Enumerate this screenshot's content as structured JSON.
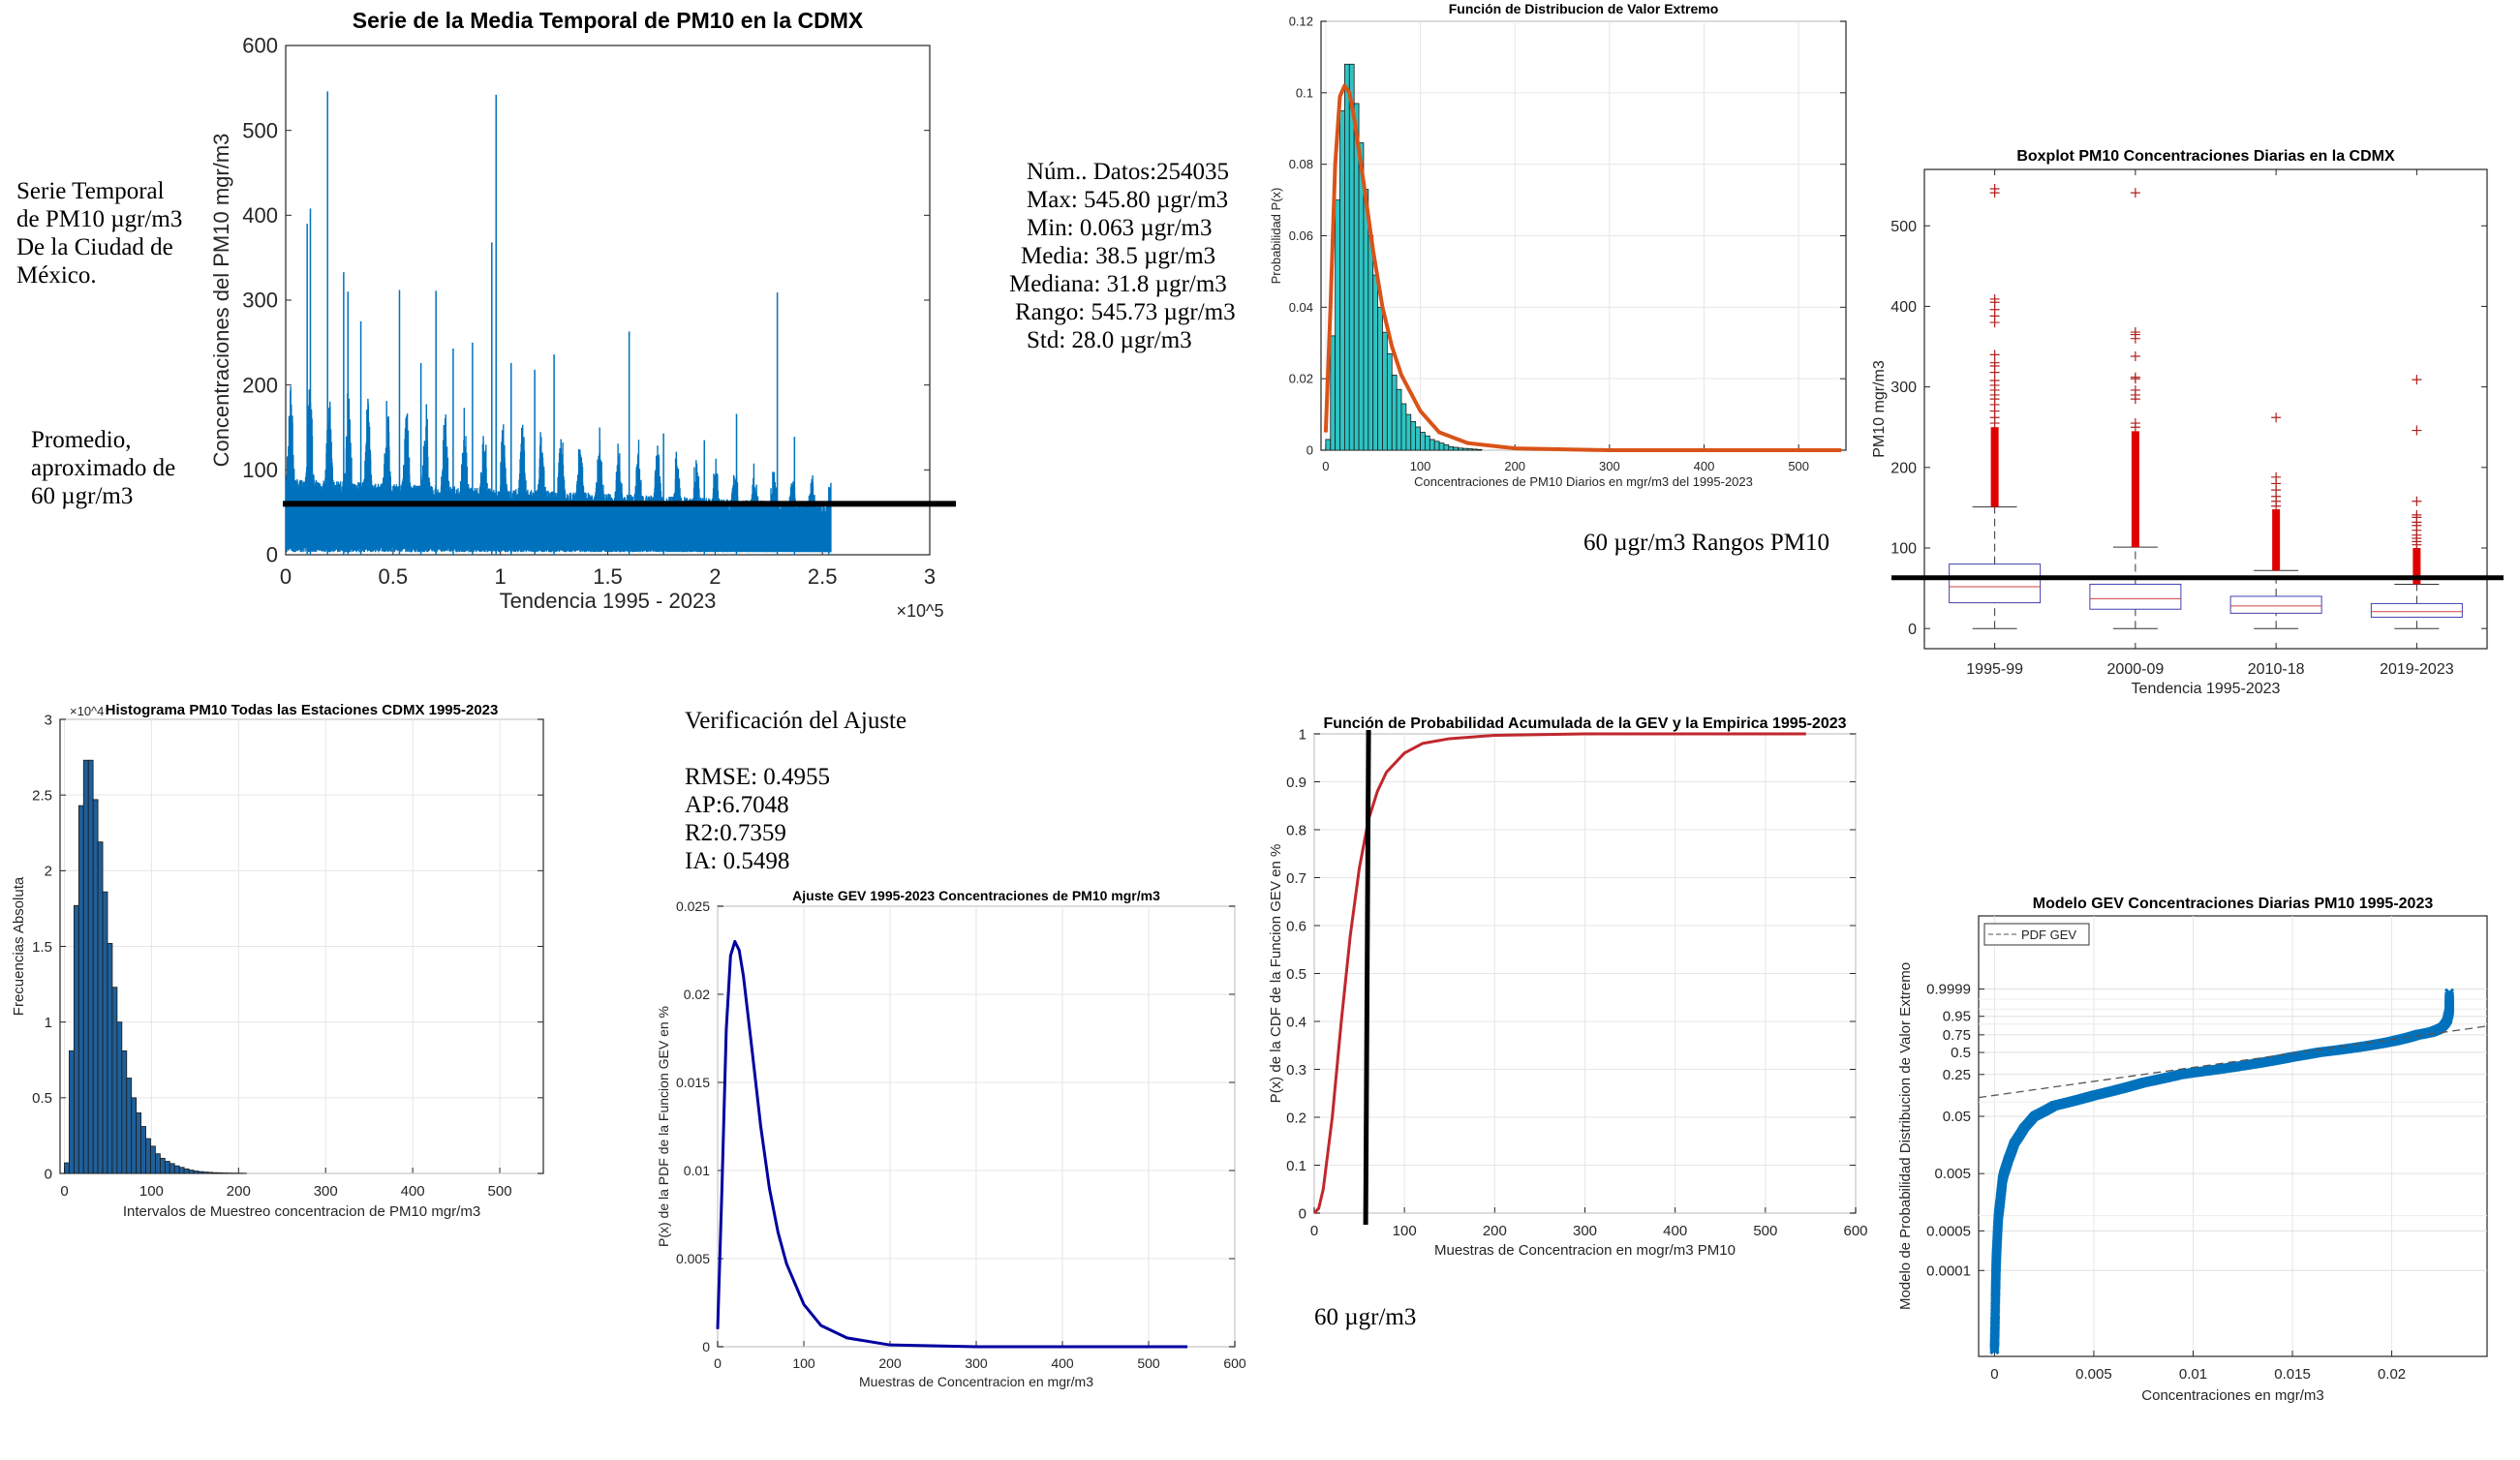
{
  "annotations": {
    "series_note": [
      "Serie Temporal",
      "de PM10 µgr/m3",
      "De la Ciudad de",
      "México."
    ],
    "average_note": [
      "Promedio,",
      "aproximado de",
      "60 µgr/m3"
    ],
    "stats": [
      "Núm.. Datos:254035",
      "Max: 545.80 µgr/m3",
      "Min: 0.063 µgr/m3",
      "Media: 38.5 µgr/m3",
      "Mediana: 31.8 µgr/m3",
      "Rango: 545.73 µgr/m3",
      "Std: 28.0 µgr/m3"
    ],
    "ranges_note": "60 µgr/m3 Rangos PM10",
    "fit_title": "Verificación del Ajuste",
    "fit_stats": [
      "RMSE: 0.4955",
      "AP:6.7048",
      "R2:0.7359",
      "IA: 0.5498"
    ],
    "cdf_note": "60 µgr/m3"
  },
  "chart_data": [
    {
      "type": "line",
      "title": "Serie de la Media Temporal de PM10 en la CDMX",
      "xlabel": "Tendencia 1995 - 2023",
      "ylabel": "Concentraciones del PM10 mgr/m3",
      "x_exponent": "×10^5",
      "xlim": [
        0,
        300000
      ],
      "ylim": [
        0,
        600
      ],
      "xticks": [
        0,
        50000,
        100000,
        150000,
        200000,
        250000,
        300000
      ],
      "xtick_labels": [
        "0",
        "0.5",
        "1",
        "1.5",
        "2",
        "2.5",
        "3"
      ],
      "yticks": [
        0,
        100,
        200,
        300,
        400,
        500,
        600
      ],
      "ytick_labels": [
        "0",
        "100",
        "200",
        "300",
        "400",
        "500",
        "600"
      ],
      "n_points": 254035,
      "peaks": [
        [
          10000,
          390
        ],
        [
          11500,
          408
        ],
        [
          19500,
          546
        ],
        [
          27000,
          333
        ],
        [
          29000,
          310
        ],
        [
          35000,
          275
        ],
        [
          53000,
          312
        ],
        [
          63000,
          226
        ],
        [
          70000,
          311
        ],
        [
          78000,
          243
        ],
        [
          87000,
          250
        ],
        [
          96000,
          368
        ],
        [
          98000,
          542
        ],
        [
          105000,
          226
        ],
        [
          116000,
          218
        ],
        [
          125000,
          236
        ],
        [
          160000,
          263
        ],
        [
          176000,
          143
        ],
        [
          195000,
          135
        ],
        [
          210000,
          166
        ],
        [
          229000,
          309
        ],
        [
          237000,
          139
        ],
        [
          253000,
          80
        ]
      ],
      "grid": false,
      "color": "#0072BD",
      "threshold": 60
    },
    {
      "type": "bar",
      "title": "Función de Distribucion de Valor Extremo",
      "xlabel": "Concentraciones de PM10 Diarios en mgr/m3 del 1995-2023",
      "ylabel": "Probabilidad P(x)",
      "xlim": [
        -5,
        550
      ],
      "ylim": [
        0,
        0.12
      ],
      "xticks": [
        0,
        100,
        200,
        300,
        400,
        500
      ],
      "xtick_labels": [
        "0",
        "100",
        "200",
        "300",
        "400",
        "500"
      ],
      "yticks": [
        0,
        0.02,
        0.04,
        0.06,
        0.08,
        0.1,
        0.12
      ],
      "ytick_labels": [
        "0",
        "0.02",
        "0.04",
        "0.06",
        "0.08",
        "0.1",
        "0.12"
      ],
      "bin_width": 5,
      "values": [
        0.003,
        0.032,
        0.07,
        0.095,
        0.108,
        0.108,
        0.097,
        0.086,
        0.073,
        0.06,
        0.049,
        0.04,
        0.033,
        0.027,
        0.021,
        0.017,
        0.013,
        0.01,
        0.008,
        0.0065,
        0.005,
        0.004,
        0.003,
        0.0025,
        0.002,
        0.0015,
        0.001,
        0.0008,
        0.0006,
        0.0005,
        0.0004,
        0.0003,
        0.0002
      ],
      "fit_x": [
        0,
        5,
        10,
        15,
        20,
        25,
        30,
        40,
        50,
        60,
        70,
        80,
        100,
        120,
        150,
        200,
        300,
        400,
        545
      ],
      "fit_y": [
        0.005,
        0.04,
        0.08,
        0.099,
        0.102,
        0.1,
        0.093,
        0.075,
        0.056,
        0.04,
        0.029,
        0.021,
        0.011,
        0.005,
        0.002,
        0.0005,
        0,
        0,
        0
      ],
      "bar_color": "#2EC4C4",
      "fit_color": "#D95319",
      "grid": true
    },
    {
      "type": "boxplot",
      "title": "Boxplot PM10 Concentraciones Diarias en la CDMX",
      "xlabel": "Tendencia 1995-2023",
      "ylabel": "PM10 mgr/m3",
      "categories": [
        "1995-99",
        "2000-09",
        "2010-18",
        "2019-2023"
      ],
      "ylim": [
        -25,
        570
      ],
      "yticks": [
        0,
        100,
        200,
        300,
        400,
        500
      ],
      "ytick_labels": [
        "0",
        "100",
        "200",
        "300",
        "400",
        "500"
      ],
      "boxes": [
        {
          "min": 0,
          "q1": 32,
          "median": 52,
          "q3": 80,
          "upper_whisker": 151,
          "dense_outliers": [
            151,
            250
          ],
          "outliers": [
            255,
            262,
            270,
            278,
            285,
            290,
            296,
            302,
            308,
            318,
            326,
            330,
            340,
            380,
            388,
            396,
            405,
            409,
            541,
            546
          ]
        },
        {
          "min": 0,
          "q1": 24,
          "median": 37,
          "q3": 55,
          "upper_whisker": 101,
          "dense_outliers": [
            101,
            245
          ],
          "outliers": [
            250,
            255,
            285,
            290,
            296,
            310,
            312,
            338,
            360,
            365,
            368,
            541
          ]
        },
        {
          "min": 0,
          "q1": 19,
          "median": 28,
          "q3": 40,
          "upper_whisker": 72,
          "dense_outliers": [
            72,
            148
          ],
          "outliers": [
            152,
            158,
            164,
            172,
            180,
            188,
            262
          ]
        },
        {
          "min": 0,
          "q1": 14,
          "median": 21,
          "q3": 31,
          "upper_whisker": 55,
          "dense_outliers": [
            55,
            100
          ],
          "outliers": [
            104,
            108,
            112,
            116,
            122,
            128,
            132,
            138,
            141,
            158,
            246,
            309
          ]
        }
      ],
      "box_color": "#4040B0",
      "median_color": "#D04040",
      "outlier_color": "#E00000",
      "grid": false,
      "threshold": 63
    },
    {
      "type": "bar",
      "title": "Histograma PM10 Todas las Estaciones CDMX 1995-2023",
      "xlabel": "Intervalos de Muestreo concentracion de PM10 mgr/m3",
      "ylabel": "Frecuencias Absoluta",
      "y_exponent": "×10^4",
      "xlim": [
        -5,
        550
      ],
      "ylim": [
        0,
        30000
      ],
      "xticks": [
        0,
        100,
        200,
        300,
        400,
        500
      ],
      "xtick_labels": [
        "0",
        "100",
        "200",
        "300",
        "400",
        "500"
      ],
      "yticks": [
        0,
        5000,
        10000,
        15000,
        20000,
        25000,
        30000
      ],
      "ytick_labels": [
        "0",
        "0.5",
        "1",
        "1.5",
        "2",
        "2.5",
        "3"
      ],
      "bin_width": 5.5,
      "values": [
        700,
        8100,
        17700,
        24300,
        27300,
        27300,
        24700,
        21900,
        18600,
        15200,
        12300,
        10000,
        8100,
        6300,
        5000,
        4000,
        3100,
        2300,
        1800,
        1300,
        1000,
        800,
        650,
        500,
        400,
        300,
        220,
        160,
        120,
        90,
        70,
        50,
        40,
        30,
        20,
        15,
        10,
        5
      ],
      "bar_color": "#1F5F99",
      "grid": true
    },
    {
      "type": "line",
      "title": "Ajuste GEV 1995-2023 Concentraciones de PM10 mgr/m3",
      "xlabel": "Muestras de Concentracion en mgr/m3",
      "ylabel": "P(x) de la PDF de la Funcion GEV en %",
      "xlim": [
        0,
        600
      ],
      "ylim": [
        0,
        0.025
      ],
      "xticks": [
        0,
        100,
        200,
        300,
        400,
        500,
        600
      ],
      "xtick_labels": [
        "0",
        "100",
        "200",
        "300",
        "400",
        "500",
        "600"
      ],
      "yticks": [
        0,
        0.005,
        0.01,
        0.015,
        0.02,
        0.025
      ],
      "ytick_labels": [
        "0",
        "0.005",
        "0.01",
        "0.015",
        "0.02",
        "0.025"
      ],
      "x": [
        0,
        5,
        10,
        15,
        20,
        25,
        30,
        40,
        50,
        60,
        70,
        80,
        100,
        120,
        150,
        200,
        300,
        400,
        545
      ],
      "y": [
        0.001,
        0.009,
        0.018,
        0.0222,
        0.023,
        0.0225,
        0.021,
        0.0168,
        0.0125,
        0.009,
        0.0065,
        0.0047,
        0.0024,
        0.0012,
        0.0005,
        0.0001,
        0,
        0,
        0
      ],
      "color": "#0000A0",
      "grid": true
    },
    {
      "type": "line",
      "title": "Función de Probabilidad Acumulada de la GEV y la Empirica 1995-2023",
      "xlabel": "Muestras de Concentracion en mogr/m3 PM10",
      "ylabel": "P(x) de la CDF de la Funcion GEV en %",
      "xlim": [
        0,
        600
      ],
      "ylim": [
        0,
        1
      ],
      "xticks": [
        0,
        100,
        200,
        300,
        400,
        500,
        600
      ],
      "xtick_labels": [
        "0",
        "100",
        "200",
        "300",
        "400",
        "500",
        "600"
      ],
      "yticks": [
        0,
        0.1,
        0.2,
        0.3,
        0.4,
        0.5,
        0.6,
        0.7,
        0.8,
        0.9,
        1
      ],
      "ytick_labels": [
        "0",
        "0.1",
        "0.2",
        "0.3",
        "0.4",
        "0.5",
        "0.6",
        "0.7",
        "0.8",
        "0.9",
        "1"
      ],
      "x": [
        0,
        5,
        10,
        20,
        30,
        40,
        50,
        60,
        70,
        80,
        100,
        120,
        150,
        200,
        300,
        545
      ],
      "y": [
        0,
        0.01,
        0.05,
        0.2,
        0.4,
        0.58,
        0.72,
        0.82,
        0.88,
        0.92,
        0.96,
        0.98,
        0.99,
        0.997,
        1,
        1
      ],
      "color": "#C0272D",
      "grid": true,
      "threshold_x": 57
    },
    {
      "type": "scatter",
      "title": "Modelo GEV Concentraciones Diarias PM10 1995-2023",
      "xlabel": "Concentraciones en mgr/m3",
      "ylabel": "Modelo de Probabilidad Distribucion de Valor Extremo",
      "legend": [
        "PDF GEV"
      ],
      "legend_position": "top-left",
      "xlim": [
        -0.0008,
        0.0248
      ],
      "xticks": [
        0,
        0.005,
        0.01,
        0.015,
        0.02
      ],
      "xtick_labels": [
        "0",
        "0.005",
        "0.01",
        "0.015",
        "0.02"
      ],
      "yticks": [
        0.0001,
        0.0005,
        0.005,
        0.05,
        0.25,
        0.5,
        0.75,
        0.95,
        0.9999
      ],
      "ytick_labels": [
        "0.0001",
        "0.0005",
        "0.005",
        "0.05",
        "0.25",
        "0.5",
        "0.75",
        "0.95",
        "0.9999"
      ],
      "x": [
        0,
        5e-05,
        0.0001,
        0.0002,
        0.0004,
        0.0007,
        0.001,
        0.0015,
        0.002,
        0.003,
        0.005,
        0.0075,
        0.01,
        0.0125,
        0.015,
        0.0175,
        0.02,
        0.021,
        0.022,
        0.0225,
        0.0228,
        0.0229,
        0.0229
      ],
      "y": [
        1e-05,
        5e-05,
        0.0002,
        0.001,
        0.004,
        0.01,
        0.02,
        0.035,
        0.05,
        0.085,
        0.13,
        0.2,
        0.27,
        0.35,
        0.45,
        0.55,
        0.67,
        0.73,
        0.8,
        0.86,
        0.93,
        0.99,
        0.99995
      ],
      "fit_line": {
        "x": [
          -0.0008,
          0.0248
        ],
        "p": [
          0.12,
          0.88
        ]
      },
      "color": "#0072BD",
      "grid": true
    }
  ]
}
